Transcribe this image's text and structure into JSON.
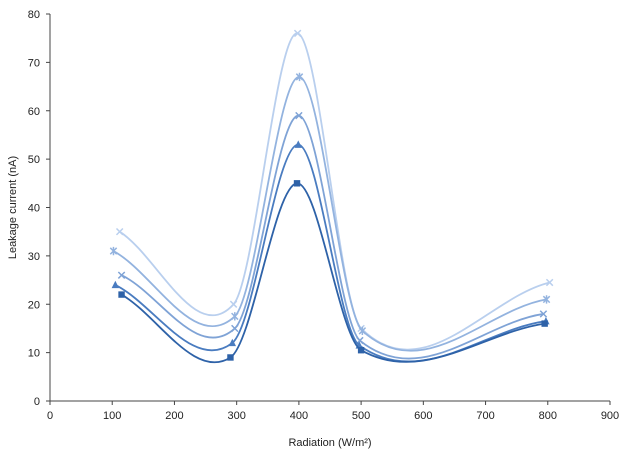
{
  "chart_data": {
    "type": "line",
    "title": "",
    "xlabel": "Radiation (W/m²)",
    "ylabel": "Leakage current (nA)",
    "xlim": [
      0,
      900
    ],
    "ylim": [
      0,
      80
    ],
    "x_ticks": [
      "0",
      "100",
      "200",
      "300",
      "400",
      "500",
      "600",
      "700",
      "800",
      "900"
    ],
    "y_ticks": [
      "0",
      "10",
      "20",
      "30",
      "40",
      "50",
      "60",
      "70",
      "80"
    ],
    "grid": false,
    "legend": "none",
    "smooth": true,
    "series": [
      {
        "color": "#2e62a8",
        "marker": "square",
        "x": [
          115,
          290,
          397,
          500,
          795
        ],
        "y": [
          22,
          9,
          45,
          10.5,
          16
        ]
      },
      {
        "color": "#4a7cc0",
        "marker": "triangle",
        "x": [
          105,
          293,
          399,
          497,
          797
        ],
        "y": [
          24,
          12,
          53,
          11.5,
          16.5
        ]
      },
      {
        "color": "#7fa3d6",
        "marker": "x",
        "x": [
          115,
          297,
          400,
          498,
          793
        ],
        "y": [
          26,
          15,
          59,
          12.5,
          18
        ]
      },
      {
        "color": "#93b3df",
        "marker": "star",
        "x": [
          102,
          297,
          401,
          502,
          798
        ],
        "y": [
          31,
          17.5,
          67,
          14.5,
          21
        ]
      },
      {
        "color": "#b9cfee",
        "marker": "x",
        "x": [
          112,
          295,
          398,
          500,
          803
        ],
        "y": [
          35,
          20,
          76,
          15,
          24.5
        ]
      }
    ]
  }
}
